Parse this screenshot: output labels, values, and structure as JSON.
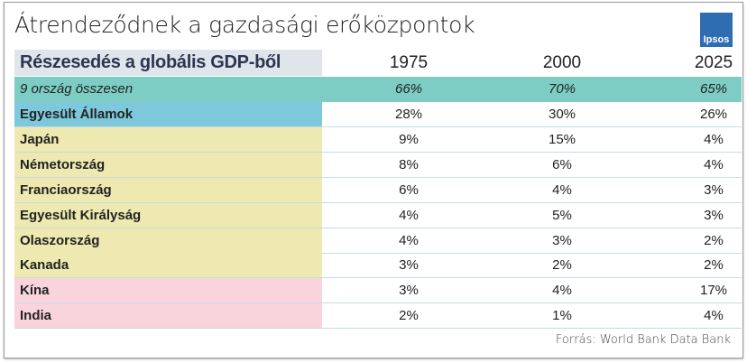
{
  "title": "Átrendeződnek a gazdasági erőközpontok",
  "logo": "Ipsos",
  "header": {
    "label": "Részesedés a globális GDP-ből",
    "years": [
      "1975",
      "2000",
      "2025"
    ]
  },
  "total": {
    "label": "9 ország összesen",
    "values": [
      "66%",
      "70%",
      "65%"
    ],
    "color": "#7dcdc4"
  },
  "rows": [
    {
      "label": "Egyesült Államok",
      "values": [
        "28%",
        "30%",
        "26%"
      ],
      "color": "#7ec8dc"
    },
    {
      "label": "Japán",
      "values": [
        "9%",
        "15%",
        "4%"
      ],
      "color": "#ede9b0"
    },
    {
      "label": "Németország",
      "values": [
        "8%",
        "6%",
        "4%"
      ],
      "color": "#ede9b0"
    },
    {
      "label": "Franciaország",
      "values": [
        "6%",
        "4%",
        "3%"
      ],
      "color": "#ede9b0"
    },
    {
      "label": "Egyesült Királyság",
      "values": [
        "4%",
        "5%",
        "3%"
      ],
      "color": "#ede9b0"
    },
    {
      "label": "Olaszország",
      "values": [
        "4%",
        "3%",
        "2%"
      ],
      "color": "#ede9b0"
    },
    {
      "label": "Kanada",
      "values": [
        "3%",
        "2%",
        "2%"
      ],
      "color": "#ede9b0"
    },
    {
      "label": "Kína",
      "values": [
        "3%",
        "4%",
        "17%"
      ],
      "color": "#fad4dc"
    },
    {
      "label": "India",
      "values": [
        "2%",
        "1%",
        "4%"
      ],
      "color": "#fad4dc"
    }
  ],
  "source": "Forrás: World Bank Data Bank"
}
